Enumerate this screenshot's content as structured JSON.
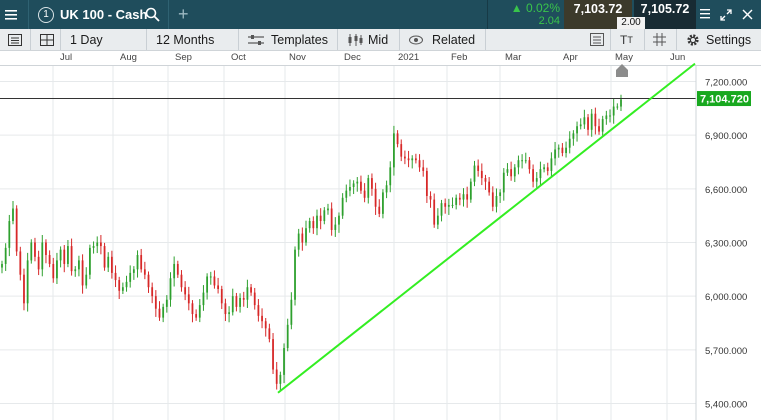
{
  "header": {
    "instrument_number": "1",
    "instrument_name": "UK 100 - Cash",
    "change_percent": "0.02%",
    "change_points": "2.04",
    "sell_price": "7,103.72",
    "buy_price": "7,105.72",
    "spread": "2.00"
  },
  "toolbar": {
    "interval": "1 Day",
    "range": "12 Months",
    "templates": "Templates",
    "price_type": "Mid",
    "related": "Related",
    "settings": "Settings"
  },
  "chart_data": {
    "type": "candlestick",
    "title": "",
    "months": [
      "Jul",
      "Aug",
      "Sep",
      "Oct",
      "Nov",
      "Dec",
      "2021",
      "Feb",
      "Mar",
      "Apr",
      "May",
      "Jun"
    ],
    "y_ticks": [
      "7,200.000",
      "6,900.000",
      "6,600.000",
      "6,300.000",
      "6,000.000",
      "5,700.000",
      "5,400.000"
    ],
    "ylim": [
      5400,
      7200
    ],
    "current_price": "7,104.720",
    "horizontal_line_value": 7104.72,
    "trendline": {
      "start_value": 5460,
      "end_value": 7300
    },
    "close_series": [
      6180,
      6270,
      6420,
      6490,
      6250,
      6120,
      5960,
      6200,
      6300,
      6220,
      6150,
      6300,
      6230,
      6180,
      6100,
      6200,
      6260,
      6180,
      6280,
      6140,
      6150,
      6200,
      6060,
      6120,
      6270,
      6280,
      6300,
      6280,
      6160,
      6220,
      6130,
      6090,
      6030,
      6050,
      6080,
      6130,
      6150,
      6230,
      6150,
      6120,
      6050,
      6000,
      5930,
      5880,
      5940,
      5980,
      6100,
      6180,
      6120,
      6050,
      6010,
      5960,
      5900,
      5880,
      5950,
      6020,
      6110,
      6110,
      6060,
      6040,
      5960,
      5900,
      5910,
      6000,
      5940,
      5990,
      5980,
      6050,
      6020,
      5950,
      5890,
      5860,
      5820,
      5760,
      5590,
      5510,
      5560,
      5710,
      5840,
      5980,
      6260,
      6350,
      6300,
      6380,
      6420,
      6380,
      6450,
      6420,
      6480,
      6490,
      6370,
      6400,
      6450,
      6550,
      6590,
      6610,
      6630,
      6640,
      6590,
      6550,
      6660,
      6600,
      6500,
      6460,
      6580,
      6620,
      6720,
      6910,
      6850,
      6780,
      6770,
      6760,
      6770,
      6760,
      6720,
      6700,
      6560,
      6540,
      6400,
      6450,
      6520,
      6500,
      6510,
      6510,
      6550,
      6540,
      6570,
      6540,
      6640,
      6730,
      6700,
      6660,
      6640,
      6580,
      6500,
      6560,
      6580,
      6690,
      6710,
      6670,
      6720,
      6760,
      6760,
      6760,
      6710,
      6640,
      6660,
      6710,
      6720,
      6700,
      6770,
      6820,
      6830,
      6800,
      6830,
      6880,
      6910,
      6950,
      6960,
      7000,
      6930,
      7020,
      6950,
      6920,
      6990,
      7010,
      7010,
      7060,
      7060,
      7100
    ]
  }
}
